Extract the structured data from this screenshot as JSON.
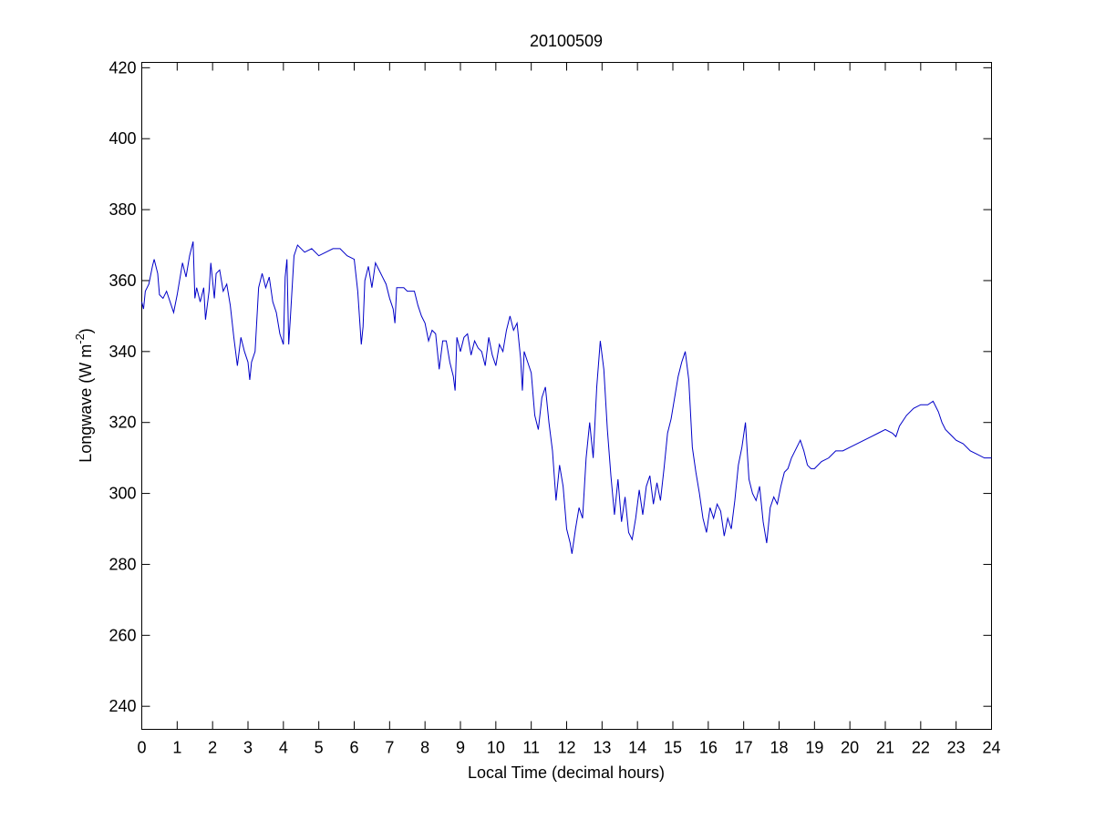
{
  "chart_data": {
    "type": "line",
    "title": "20100509",
    "xlabel": "Local Time (decimal hours)",
    "ylabel": {
      "text": "Longwave (W m",
      "superscript": "-2",
      "suffix": ")"
    },
    "xlim": [
      0,
      24
    ],
    "ylim": [
      233.5,
      421.5
    ],
    "xticks": [
      0,
      1,
      2,
      3,
      4,
      5,
      6,
      7,
      8,
      9,
      10,
      11,
      12,
      13,
      14,
      15,
      16,
      17,
      18,
      19,
      20,
      21,
      22,
      23,
      24
    ],
    "yticks": [
      240,
      260,
      280,
      300,
      320,
      340,
      360,
      380,
      400,
      420
    ],
    "grid": false,
    "series": [
      {
        "color": "#0000c8",
        "x": [
          0,
          0.05,
          0.1,
          0.2,
          0.3,
          0.35,
          0.45,
          0.5,
          0.6,
          0.7,
          0.8,
          0.9,
          1.0,
          1.1,
          1.15,
          1.25,
          1.35,
          1.45,
          1.5,
          1.55,
          1.65,
          1.75,
          1.8,
          1.9,
          1.95,
          2.05,
          2.1,
          2.2,
          2.3,
          2.4,
          2.5,
          2.6,
          2.7,
          2.8,
          2.9,
          3.0,
          3.05,
          3.1,
          3.2,
          3.3,
          3.4,
          3.5,
          3.6,
          3.7,
          3.8,
          3.9,
          4.0,
          4.05,
          4.1,
          4.15,
          4.2,
          4.3,
          4.4,
          4.6,
          4.8,
          5.0,
          5.2,
          5.4,
          5.6,
          5.8,
          6.0,
          6.1,
          6.2,
          6.25,
          6.3,
          6.4,
          6.5,
          6.6,
          6.7,
          6.8,
          6.9,
          7.0,
          7.1,
          7.15,
          7.2,
          7.4,
          7.5,
          7.7,
          7.8,
          7.9,
          8.0,
          8.1,
          8.2,
          8.3,
          8.4,
          8.5,
          8.6,
          8.7,
          8.8,
          8.85,
          8.9,
          9.0,
          9.1,
          9.2,
          9.3,
          9.4,
          9.5,
          9.6,
          9.7,
          9.8,
          9.9,
          10.0,
          10.1,
          10.2,
          10.3,
          10.4,
          10.5,
          10.6,
          10.7,
          10.75,
          10.8,
          10.9,
          11.0,
          11.1,
          11.2,
          11.3,
          11.4,
          11.5,
          11.6,
          11.7,
          11.8,
          11.9,
          12.0,
          12.1,
          12.15,
          12.25,
          12.35,
          12.45,
          12.55,
          12.65,
          12.75,
          12.85,
          12.95,
          13.05,
          13.15,
          13.25,
          13.35,
          13.45,
          13.55,
          13.65,
          13.75,
          13.85,
          13.95,
          14.05,
          14.15,
          14.25,
          14.35,
          14.45,
          14.55,
          14.65,
          14.75,
          14.85,
          14.95,
          15.05,
          15.15,
          15.25,
          15.35,
          15.45,
          15.55,
          15.65,
          15.75,
          15.85,
          15.95,
          16.05,
          16.15,
          16.25,
          16.35,
          16.45,
          16.55,
          16.65,
          16.75,
          16.85,
          16.95,
          17.05,
          17.15,
          17.25,
          17.35,
          17.45,
          17.55,
          17.65,
          17.75,
          17.85,
          17.95,
          18.05,
          18.15,
          18.25,
          18.35,
          18.5,
          18.6,
          18.7,
          18.8,
          18.9,
          19.0,
          19.2,
          19.4,
          19.6,
          19.8,
          20.0,
          20.2,
          20.4,
          20.6,
          20.8,
          21.0,
          21.2,
          21.3,
          21.4,
          21.6,
          21.8,
          22.0,
          22.2,
          22.35,
          22.5,
          22.6,
          22.7,
          22.8,
          22.9,
          23.0,
          23.2,
          23.4,
          23.6,
          23.8,
          24.0
        ],
        "values": [
          354,
          352,
          357,
          359,
          364,
          366,
          362,
          356,
          355,
          357,
          354,
          351,
          356,
          362,
          365,
          361,
          367,
          371,
          355,
          358,
          354,
          358,
          349,
          357,
          365,
          355,
          362,
          363,
          357,
          359,
          353,
          344,
          336,
          344,
          340,
          337,
          332,
          337,
          340,
          358,
          362,
          358,
          361,
          354,
          351,
          345,
          342,
          361,
          366,
          342,
          350,
          367,
          370,
          368,
          369,
          367,
          368,
          369,
          369,
          367,
          366,
          357,
          342,
          347,
          360,
          364,
          358,
          365,
          363,
          361,
          359,
          355,
          352,
          348,
          358,
          358,
          357,
          357,
          353,
          350,
          348,
          343,
          346,
          345,
          335,
          343,
          343,
          337,
          333,
          329,
          344,
          340,
          344,
          345,
          339,
          343,
          341,
          340,
          336,
          344,
          339,
          336,
          342,
          340,
          346,
          350,
          346,
          348,
          338,
          329,
          340,
          337,
          334,
          322,
          318,
          327,
          330,
          320,
          312,
          298,
          308,
          302,
          290,
          286,
          283,
          290,
          296,
          293,
          310,
          320,
          310,
          330,
          343,
          335,
          318,
          305,
          294,
          304,
          292,
          299,
          289,
          287,
          293,
          301,
          294,
          302,
          305,
          297,
          303,
          298,
          307,
          317,
          321,
          327,
          333,
          337,
          340,
          332,
          313,
          306,
          300,
          293,
          289,
          296,
          293,
          297,
          295,
          288,
          293,
          290,
          298,
          308,
          313,
          320,
          304,
          300,
          298,
          302,
          292,
          286,
          296,
          299,
          297,
          302,
          306,
          307,
          310,
          313,
          315,
          312,
          308,
          307,
          307,
          309,
          310,
          312,
          312,
          313,
          314,
          315,
          316,
          317,
          318,
          317,
          316,
          319,
          322,
          324,
          325,
          325,
          326,
          323,
          320,
          318,
          317,
          316,
          315,
          314,
          312,
          311,
          310,
          310
        ]
      }
    ]
  }
}
